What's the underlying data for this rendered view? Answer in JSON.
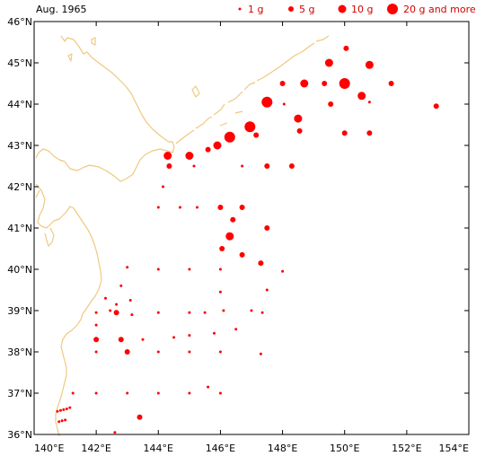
{
  "title": "Aug. 1965",
  "legend": [
    {
      "label": "1 g",
      "size_class": 1
    },
    {
      "label": "5 g",
      "size_class": 2
    },
    {
      "label": "10 g",
      "size_class": 3
    },
    {
      "label": "20 g and more",
      "size_class": 4
    }
  ],
  "colors": {
    "marker": "#ff0000",
    "legend_text": "#d40000",
    "coast": "#f0c880",
    "frame": "#000000"
  },
  "chart_data": {
    "type": "scatter",
    "xlim": [
      140,
      154
    ],
    "ylim": [
      36,
      46
    ],
    "x_ticks": [
      140,
      142,
      144,
      146,
      148,
      150,
      152,
      154
    ],
    "y_ticks": [
      36,
      37,
      38,
      39,
      40,
      41,
      42,
      43,
      44,
      45,
      46
    ],
    "x_tick_labels": [
      "140°E",
      "142°E",
      "144°E",
      "146°E",
      "148°E",
      "150°E",
      "152°E",
      "154°E"
    ],
    "y_tick_labels": [
      "36°N",
      "37°N",
      "38°N",
      "39°N",
      "40°N",
      "41°N",
      "42°N",
      "43°N",
      "44°N",
      "45°N",
      "46°N"
    ],
    "points": [
      {
        "lon": 150.05,
        "lat": 45.35,
        "s": 2
      },
      {
        "lon": 149.5,
        "lat": 45.0,
        "s": 3
      },
      {
        "lon": 150.8,
        "lat": 44.95,
        "s": 3
      },
      {
        "lon": 148.0,
        "lat": 44.5,
        "s": 2
      },
      {
        "lon": 148.7,
        "lat": 44.5,
        "s": 3
      },
      {
        "lon": 149.35,
        "lat": 44.5,
        "s": 2
      },
      {
        "lon": 150.0,
        "lat": 44.5,
        "s": 4
      },
      {
        "lon": 151.5,
        "lat": 44.5,
        "s": 2
      },
      {
        "lon": 150.55,
        "lat": 44.2,
        "s": 3
      },
      {
        "lon": 147.5,
        "lat": 44.05,
        "s": 4
      },
      {
        "lon": 148.05,
        "lat": 44.0,
        "s": 1
      },
      {
        "lon": 149.55,
        "lat": 44.0,
        "s": 2
      },
      {
        "lon": 150.8,
        "lat": 44.05,
        "s": 1
      },
      {
        "lon": 152.95,
        "lat": 43.95,
        "s": 2
      },
      {
        "lon": 148.5,
        "lat": 43.65,
        "s": 3
      },
      {
        "lon": 146.95,
        "lat": 43.45,
        "s": 4
      },
      {
        "lon": 148.55,
        "lat": 43.35,
        "s": 2
      },
      {
        "lon": 150.0,
        "lat": 43.3,
        "s": 2
      },
      {
        "lon": 150.8,
        "lat": 43.3,
        "s": 2
      },
      {
        "lon": 147.15,
        "lat": 43.25,
        "s": 2
      },
      {
        "lon": 146.3,
        "lat": 43.2,
        "s": 4
      },
      {
        "lon": 145.9,
        "lat": 43.0,
        "s": 3
      },
      {
        "lon": 145.6,
        "lat": 42.9,
        "s": 2
      },
      {
        "lon": 144.3,
        "lat": 42.75,
        "s": 3
      },
      {
        "lon": 145.0,
        "lat": 42.75,
        "s": 3
      },
      {
        "lon": 144.35,
        "lat": 42.5,
        "s": 2
      },
      {
        "lon": 145.15,
        "lat": 42.5,
        "s": 1
      },
      {
        "lon": 146.7,
        "lat": 42.5,
        "s": 1
      },
      {
        "lon": 147.5,
        "lat": 42.5,
        "s": 2
      },
      {
        "lon": 148.3,
        "lat": 42.5,
        "s": 2
      },
      {
        "lon": 144.15,
        "lat": 42.0,
        "s": 1
      },
      {
        "lon": 144.0,
        "lat": 41.5,
        "s": 1
      },
      {
        "lon": 144.7,
        "lat": 41.5,
        "s": 1
      },
      {
        "lon": 145.25,
        "lat": 41.5,
        "s": 1
      },
      {
        "lon": 146.0,
        "lat": 41.5,
        "s": 2
      },
      {
        "lon": 146.7,
        "lat": 41.5,
        "s": 2
      },
      {
        "lon": 146.4,
        "lat": 41.2,
        "s": 2
      },
      {
        "lon": 147.5,
        "lat": 41.0,
        "s": 2
      },
      {
        "lon": 146.3,
        "lat": 40.8,
        "s": 3
      },
      {
        "lon": 146.05,
        "lat": 40.5,
        "s": 2
      },
      {
        "lon": 146.7,
        "lat": 40.35,
        "s": 2
      },
      {
        "lon": 147.3,
        "lat": 40.15,
        "s": 2
      },
      {
        "lon": 143.0,
        "lat": 40.05,
        "s": 1
      },
      {
        "lon": 144.0,
        "lat": 40.0,
        "s": 1
      },
      {
        "lon": 145.0,
        "lat": 40.0,
        "s": 1
      },
      {
        "lon": 146.0,
        "lat": 40.0,
        "s": 1
      },
      {
        "lon": 148.0,
        "lat": 39.95,
        "s": 1
      },
      {
        "lon": 147.5,
        "lat": 39.5,
        "s": 1
      },
      {
        "lon": 146.0,
        "lat": 39.45,
        "s": 1
      },
      {
        "lon": 142.8,
        "lat": 39.6,
        "s": 1
      },
      {
        "lon": 142.3,
        "lat": 39.3,
        "s": 1
      },
      {
        "lon": 143.1,
        "lat": 39.25,
        "s": 1
      },
      {
        "lon": 142.65,
        "lat": 39.15,
        "s": 1
      },
      {
        "lon": 142.45,
        "lat": 39.0,
        "s": 1
      },
      {
        "lon": 142.65,
        "lat": 38.95,
        "s": 2
      },
      {
        "lon": 142.0,
        "lat": 38.95,
        "s": 1
      },
      {
        "lon": 143.15,
        "lat": 38.9,
        "s": 1
      },
      {
        "lon": 144.0,
        "lat": 38.95,
        "s": 1
      },
      {
        "lon": 145.0,
        "lat": 38.95,
        "s": 1
      },
      {
        "lon": 145.5,
        "lat": 38.95,
        "s": 1
      },
      {
        "lon": 146.1,
        "lat": 39.0,
        "s": 1
      },
      {
        "lon": 147.0,
        "lat": 39.0,
        "s": 1
      },
      {
        "lon": 147.35,
        "lat": 38.95,
        "s": 1
      },
      {
        "lon": 142.0,
        "lat": 38.65,
        "s": 1
      },
      {
        "lon": 146.5,
        "lat": 38.55,
        "s": 1
      },
      {
        "lon": 145.8,
        "lat": 38.45,
        "s": 1
      },
      {
        "lon": 145.0,
        "lat": 38.4,
        "s": 1
      },
      {
        "lon": 144.5,
        "lat": 38.35,
        "s": 1
      },
      {
        "lon": 142.0,
        "lat": 38.3,
        "s": 2
      },
      {
        "lon": 142.8,
        "lat": 38.3,
        "s": 2
      },
      {
        "lon": 143.5,
        "lat": 38.3,
        "s": 1
      },
      {
        "lon": 142.0,
        "lat": 38.0,
        "s": 1
      },
      {
        "lon": 143.0,
        "lat": 38.0,
        "s": 2
      },
      {
        "lon": 144.0,
        "lat": 38.0,
        "s": 1
      },
      {
        "lon": 145.0,
        "lat": 38.0,
        "s": 1
      },
      {
        "lon": 146.0,
        "lat": 38.0,
        "s": 1
      },
      {
        "lon": 147.3,
        "lat": 37.95,
        "s": 1
      },
      {
        "lon": 145.6,
        "lat": 37.15,
        "s": 1
      },
      {
        "lon": 141.25,
        "lat": 37.0,
        "s": 1
      },
      {
        "lon": 142.0,
        "lat": 37.0,
        "s": 1
      },
      {
        "lon": 143.0,
        "lat": 37.0,
        "s": 1
      },
      {
        "lon": 144.0,
        "lat": 37.0,
        "s": 1
      },
      {
        "lon": 145.0,
        "lat": 37.0,
        "s": 1
      },
      {
        "lon": 146.0,
        "lat": 37.0,
        "s": 1
      },
      {
        "lon": 141.15,
        "lat": 36.65,
        "s": 1
      },
      {
        "lon": 141.05,
        "lat": 36.62,
        "s": 1
      },
      {
        "lon": 140.95,
        "lat": 36.6,
        "s": 1
      },
      {
        "lon": 140.85,
        "lat": 36.58,
        "s": 1
      },
      {
        "lon": 140.75,
        "lat": 36.56,
        "s": 1
      },
      {
        "lon": 141.0,
        "lat": 36.35,
        "s": 1
      },
      {
        "lon": 140.9,
        "lat": 36.33,
        "s": 1
      },
      {
        "lon": 140.8,
        "lat": 36.31,
        "s": 1
      },
      {
        "lon": 143.4,
        "lat": 36.42,
        "s": 2
      },
      {
        "lon": 142.6,
        "lat": 36.05,
        "s": 1
      }
    ]
  }
}
